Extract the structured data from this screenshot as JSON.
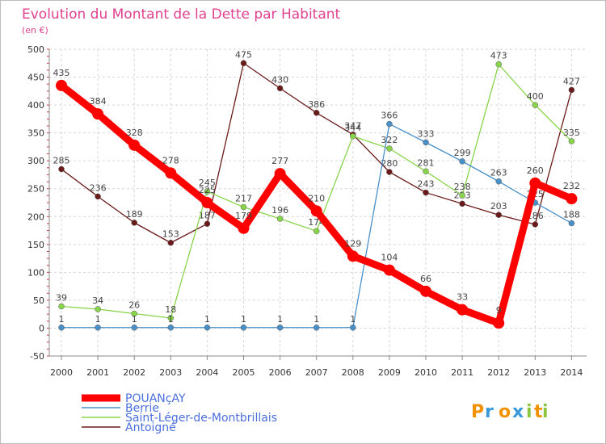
{
  "chart_data": {
    "type": "line",
    "title": "Evolution du Montant de la Dette par Habitant",
    "subtitle": "(en €)",
    "x": [
      "2000",
      "2001",
      "2002",
      "2003",
      "2004",
      "2005",
      "2006",
      "2007",
      "2008",
      "2009",
      "2010",
      "2011",
      "2012",
      "2013",
      "2014"
    ],
    "ylim": [
      -50,
      500
    ],
    "yticks": [
      -50,
      0,
      50,
      100,
      150,
      200,
      250,
      300,
      350,
      400,
      450,
      500
    ],
    "grid": true,
    "legend_position": "bottom-left",
    "series": [
      {
        "name": "POUANçAY",
        "color": "#ff0000",
        "values": [
          435,
          384,
          328,
          278,
          225,
          179,
          277,
          210,
          129,
          104,
          66,
          33,
          9,
          260,
          232
        ]
      },
      {
        "name": "Berrie",
        "color": "#4a90c8",
        "values": [
          1,
          1,
          1,
          1,
          1,
          1,
          1,
          1,
          1,
          366,
          333,
          299,
          263,
          225,
          188
        ]
      },
      {
        "name": "Saint-Léger-de-Montbrillais",
        "color": "#88d44a",
        "values": [
          39,
          34,
          26,
          18,
          245,
          217,
          196,
          174,
          344,
          322,
          281,
          238,
          473,
          400,
          335
        ]
      },
      {
        "name": "Antoigné",
        "color": "#6b1a1a",
        "values": [
          285,
          236,
          189,
          153,
          187,
          475,
          430,
          386,
          347,
          280,
          243,
          223,
          203,
          186,
          427
        ]
      }
    ]
  },
  "branding": {
    "logo_text": "Proxiti",
    "logo_colors": [
      "#f39200",
      "#3a9ad9",
      "#8cc63f"
    ]
  }
}
